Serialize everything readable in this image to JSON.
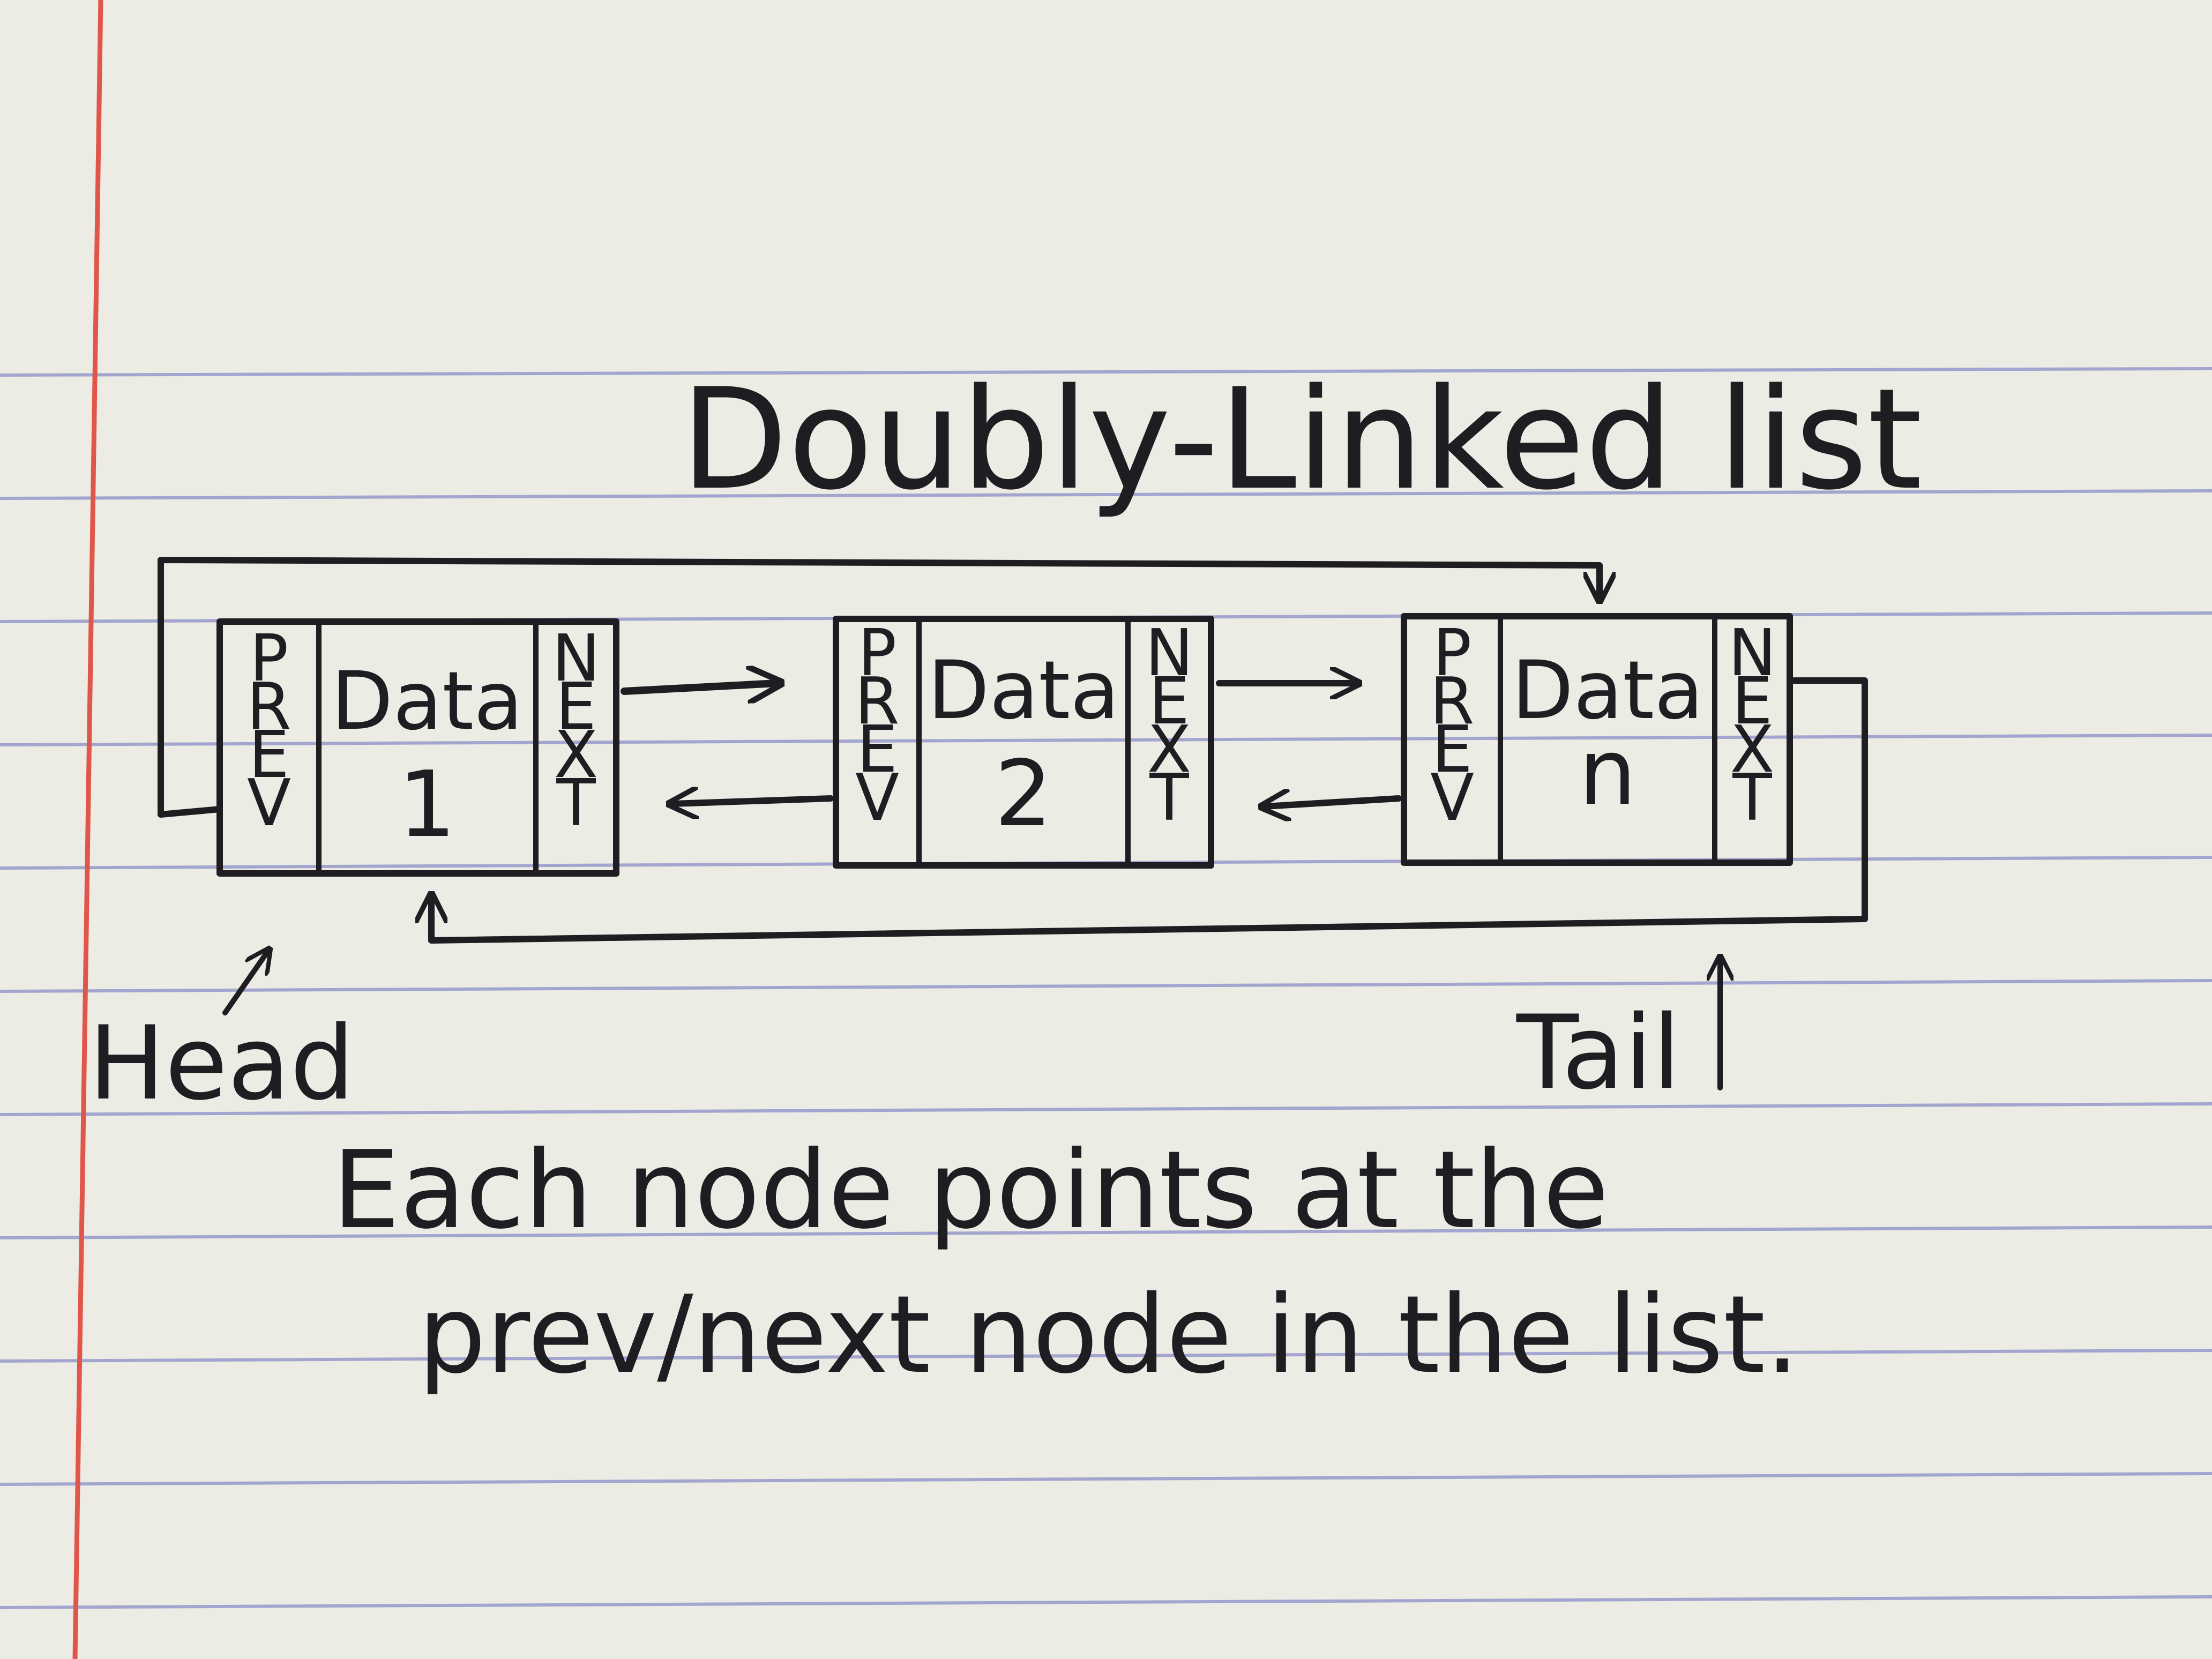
{
  "title": "Doubly-Linked list",
  "nodes": [
    {
      "prev_label": "PREV",
      "data_label": "Data",
      "data_index": "1",
      "next_label": "NEXT"
    },
    {
      "prev_label": "PREV",
      "data_label": "Data",
      "data_index": "2",
      "next_label": "NEXT"
    },
    {
      "prev_label": "PREV",
      "data_label": "Data",
      "data_index": "n",
      "next_label": "NEXT"
    }
  ],
  "head_label": "Head",
  "tail_label": "Tail",
  "caption": {
    "line1": "Each node points at the",
    "line2": "prev/next node in the list."
  },
  "colors": {
    "paper": "#ecebe4",
    "rule_line": "#8a90c8",
    "margin_line": "#e0564a",
    "ink": "#1f1d22"
  }
}
